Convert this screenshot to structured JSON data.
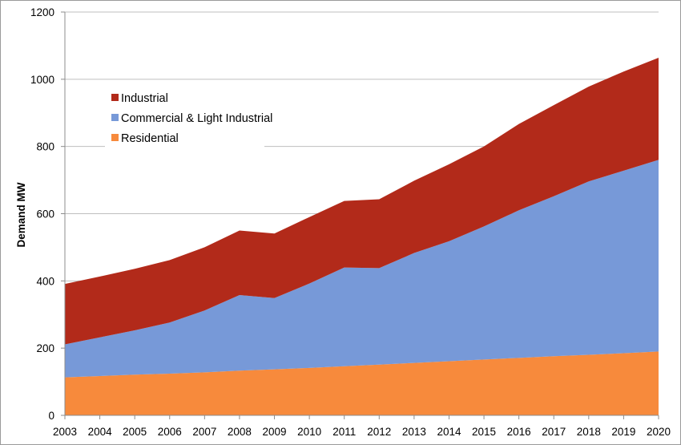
{
  "chart_data": {
    "type": "area",
    "stacked": true,
    "title": "",
    "xlabel": "",
    "ylabel": "Demand MW",
    "ylim": [
      0,
      1200
    ],
    "yticks": [
      0,
      200,
      400,
      600,
      800,
      1000,
      1200
    ],
    "grid": true,
    "legend_placement": "top-left",
    "categories": [
      "2003",
      "2004",
      "2005",
      "2006",
      "2007",
      "2008",
      "2009",
      "2010",
      "2011",
      "2012",
      "2013",
      "2014",
      "2015",
      "2016",
      "2017",
      "2018",
      "2019",
      "2020"
    ],
    "series": [
      {
        "name": "Residential",
        "color": "#f78a3c",
        "values": [
          113,
          117,
          121,
          124,
          128,
          133,
          137,
          141,
          146,
          151,
          156,
          161,
          166,
          171,
          176,
          180,
          185,
          190
        ]
      },
      {
        "name": "Commercial & Light Industrial",
        "color": "#7799d8",
        "values": [
          98,
          115,
          132,
          152,
          184,
          225,
          212,
          251,
          294,
          287,
          327,
          357,
          396,
          439,
          476,
          516,
          543,
          570
        ]
      },
      {
        "name": "Industrial",
        "color": "#b22a1a",
        "values": [
          180,
          181,
          183,
          186,
          188,
          192,
          192,
          198,
          198,
          205,
          215,
          229,
          238,
          257,
          271,
          282,
          295,
          304
        ]
      }
    ],
    "legend_order": [
      "Industrial",
      "Commercial & Light Industrial",
      "Residential"
    ]
  }
}
